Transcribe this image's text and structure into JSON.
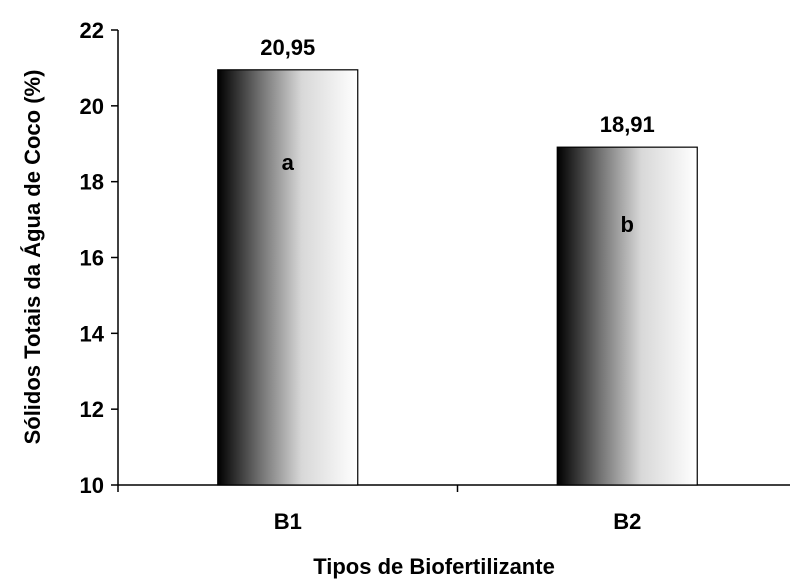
{
  "chart_data": {
    "type": "bar",
    "categories": [
      "B1",
      "B2"
    ],
    "values": [
      20.95,
      18.91
    ],
    "value_labels": [
      "20,95",
      "18,91"
    ],
    "letters": [
      "a",
      "b"
    ],
    "xlabel": "Tipos de Biofertilizante",
    "ylabel": "Sólidos Totais da Água de Coco (%)",
    "ylim": [
      10,
      22
    ],
    "yticks": [
      10,
      12,
      14,
      16,
      18,
      20,
      22
    ],
    "grid": false,
    "legend": "none",
    "bar_fill": "gradient-black-to-white",
    "colors": {
      "gradient_start": "#000000",
      "gradient_end": "#ffffff",
      "axis": "#000000"
    }
  }
}
